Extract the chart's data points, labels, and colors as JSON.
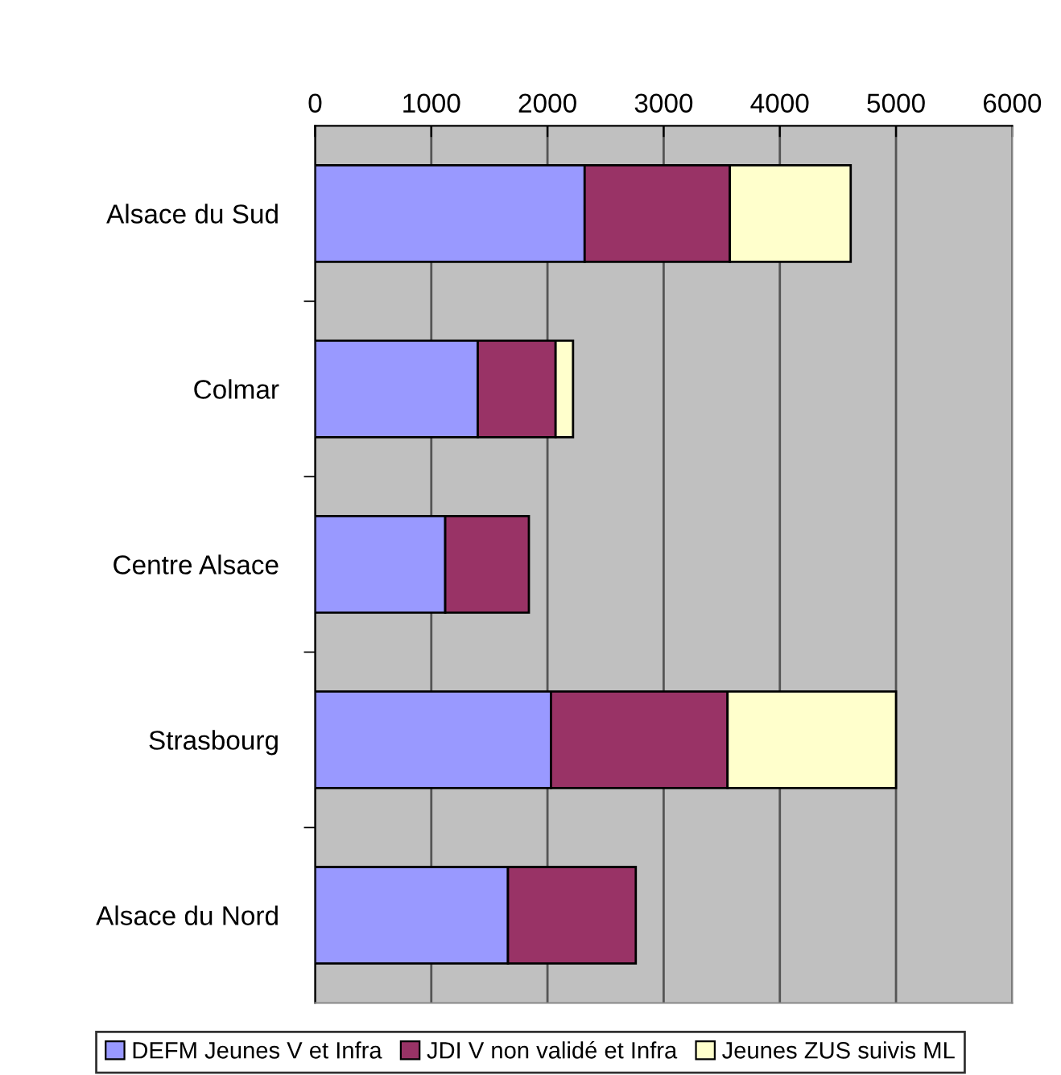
{
  "chart_data": {
    "type": "bar",
    "orientation": "horizontal",
    "stacked": true,
    "categories": [
      "Alsace du Sud",
      "Colmar",
      "Centre Alsace",
      "Strasbourg",
      "Alsace du Nord"
    ],
    "series": [
      {
        "name": "DEFM Jeunes V et Infra",
        "color": "#9999ff",
        "values": [
          2320,
          1400,
          1120,
          2030,
          1660
        ]
      },
      {
        "name": "JDI V non validé et Infra",
        "color": "#993366",
        "values": [
          1250,
          670,
          720,
          1520,
          1100
        ]
      },
      {
        "name": "Jeunes ZUS suivis ML",
        "color": "#ffffcc",
        "values": [
          1040,
          150,
          null,
          1450,
          null
        ]
      }
    ],
    "xlim": [
      0,
      6000
    ],
    "xticks": [
      0,
      1000,
      2000,
      3000,
      4000,
      5000,
      6000
    ],
    "grid": "x",
    "legend": "bottom"
  }
}
